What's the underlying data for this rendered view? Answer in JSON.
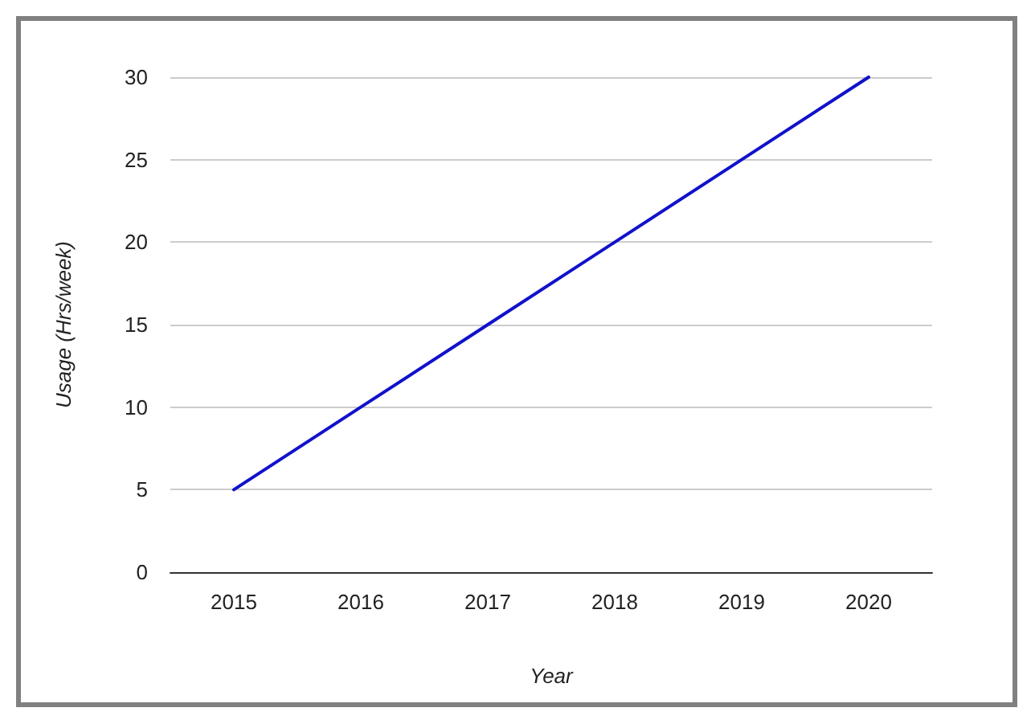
{
  "chart_data": {
    "type": "line",
    "xlabel": "Year",
    "ylabel": "Usage (Hrs/week)",
    "categories": [
      "2015",
      "2016",
      "2017",
      "2018",
      "2019",
      "2020"
    ],
    "series": [
      {
        "color": "#1111cc",
        "values": [
          5,
          10,
          15,
          20,
          25,
          30
        ]
      }
    ],
    "ylim": [
      0,
      30
    ],
    "yticks": [
      0,
      5,
      10,
      15,
      20,
      25,
      30
    ],
    "grid": "y"
  }
}
